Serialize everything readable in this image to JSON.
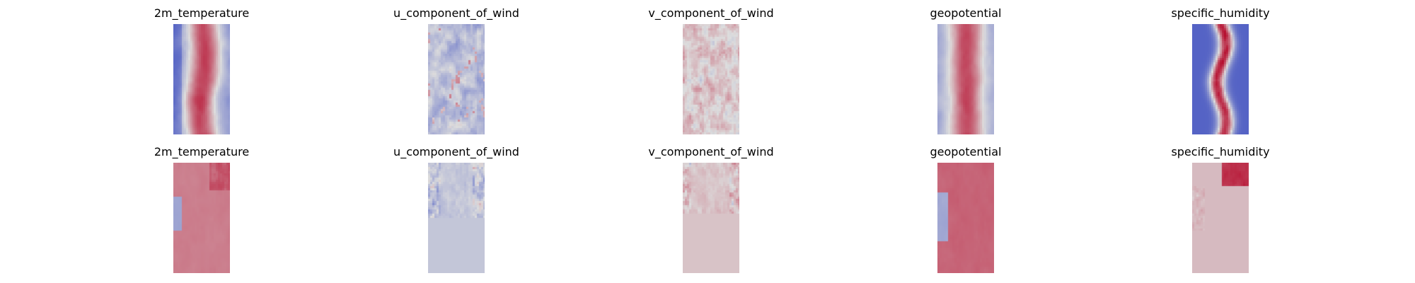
{
  "rows": [
    {
      "panels": [
        {
          "title": "2m_temperature",
          "pattern": "temp_top"
        },
        {
          "title": "u_component_of_wind",
          "pattern": "u_top"
        },
        {
          "title": "v_component_of_wind",
          "pattern": "v_top"
        },
        {
          "title": "geopotential",
          "pattern": "geo_top"
        },
        {
          "title": "specific_humidity",
          "pattern": "hum_top"
        }
      ]
    },
    {
      "panels": [
        {
          "title": "2m_temperature",
          "pattern": "temp_bottom"
        },
        {
          "title": "u_component_of_wind",
          "pattern": "u_bottom"
        },
        {
          "title": "v_component_of_wind",
          "pattern": "v_bottom"
        },
        {
          "title": "geopotential",
          "pattern": "geo_bottom"
        },
        {
          "title": "specific_humidity",
          "pattern": "hum_bottom"
        }
      ]
    }
  ],
  "colormap": "coolwarm",
  "colors": {
    "cool": "#3b4cc0",
    "neutral": "#dddddd",
    "warm": "#b40426"
  }
}
